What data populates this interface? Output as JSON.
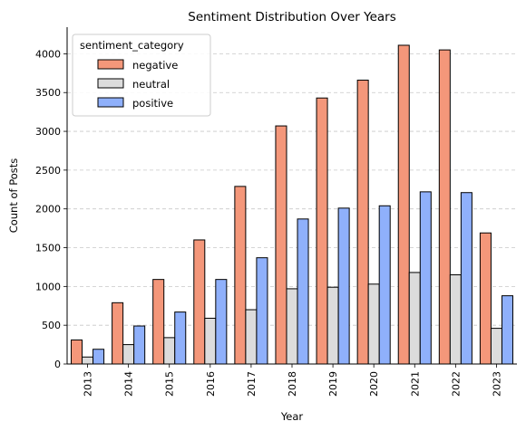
{
  "chart_data": {
    "type": "bar",
    "title": "Sentiment Distribution Over Years",
    "xlabel": "Year",
    "ylabel": "Count of Posts",
    "categories": [
      "2013",
      "2014",
      "2015",
      "2016",
      "2017",
      "2018",
      "2019",
      "2020",
      "2021",
      "2022",
      "2023"
    ],
    "series": [
      {
        "name": "negative",
        "color": "#f4977a",
        "values": [
          310,
          790,
          1090,
          1600,
          2290,
          3070,
          3430,
          3660,
          4110,
          4050,
          1690
        ]
      },
      {
        "name": "neutral",
        "color": "#dcdcdc",
        "values": [
          90,
          250,
          340,
          590,
          700,
          970,
          990,
          1030,
          1180,
          1150,
          460
        ]
      },
      {
        "name": "positive",
        "color": "#8fb0fb",
        "values": [
          190,
          490,
          670,
          1090,
          1370,
          1870,
          2010,
          2040,
          2220,
          2210,
          880
        ]
      }
    ],
    "ylim": [
      0,
      4320
    ],
    "yticks": [
      0,
      500,
      1000,
      1500,
      2000,
      2500,
      3000,
      3500,
      4000
    ],
    "grid": "y-dashed",
    "legend": {
      "title": "sentiment_category",
      "placement": "top-left"
    }
  }
}
